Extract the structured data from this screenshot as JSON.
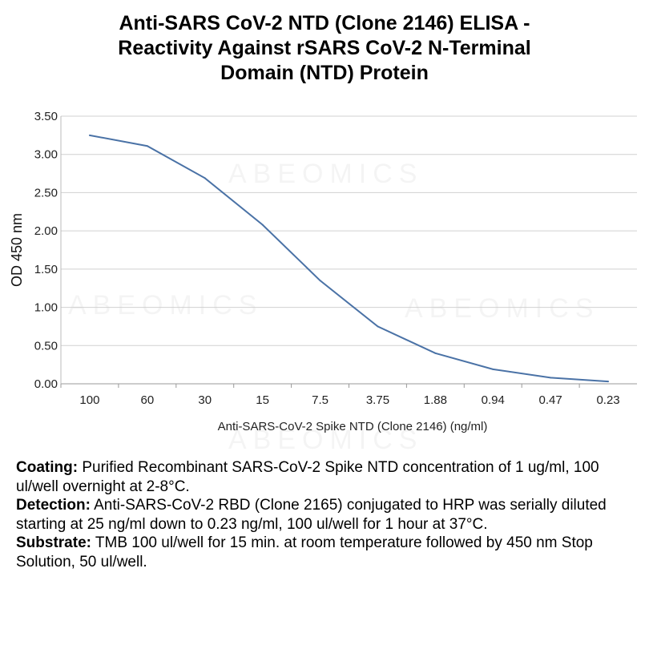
{
  "watermark": "ABEOMICS",
  "chart_data": {
    "type": "line",
    "title": "Anti-SARS CoV-2 NTD (Clone 2146) ELISA - Reactivity Against rSARS CoV-2 N-Terminal Domain (NTD) Protein",
    "title_lines": [
      "Anti-SARS CoV-2 NTD (Clone 2146) ELISA -",
      "Reactivity Against rSARS CoV-2 N-Terminal",
      "Domain (NTD) Protein"
    ],
    "xlabel": "Anti-SARS-CoV-2 Spike NTD (Clone 2146) (ng/ml)",
    "ylabel": "OD 450 nm",
    "categories": [
      "100",
      "60",
      "30",
      "15",
      "7.5",
      "3.75",
      "1.88",
      "0.94",
      "0.47",
      "0.23"
    ],
    "series": [
      {
        "name": "OD 450 nm",
        "values": [
          3.25,
          3.11,
          2.69,
          2.08,
          1.35,
          0.75,
          0.4,
          0.19,
          0.08,
          0.03
        ],
        "color": "#4a72a6"
      }
    ],
    "ylim": [
      0,
      3.5
    ],
    "yticks": [
      "0.00",
      "0.50",
      "1.00",
      "1.50",
      "2.00",
      "2.50",
      "3.00",
      "3.50"
    ],
    "grid": true,
    "legend": "none"
  },
  "notes": [
    {
      "label": "Coating:",
      "text": " Purified Recombinant SARS-CoV-2 Spike NTD concentration of 1 ug/ml, 100 ul/well overnight at 2-8°C."
    },
    {
      "label": "Detection:",
      "text": " Anti-SARS-CoV-2 RBD (Clone 2165) conjugated to HRP was serially diluted starting at 25 ng/ml down to 0.23 ng/ml, 100 ul/well for 1 hour at 37°C."
    },
    {
      "label": "Substrate:",
      "text": " TMB 100 ul/well for 15 min. at room temperature followed by 450 nm Stop Solution, 50 ul/well."
    }
  ]
}
